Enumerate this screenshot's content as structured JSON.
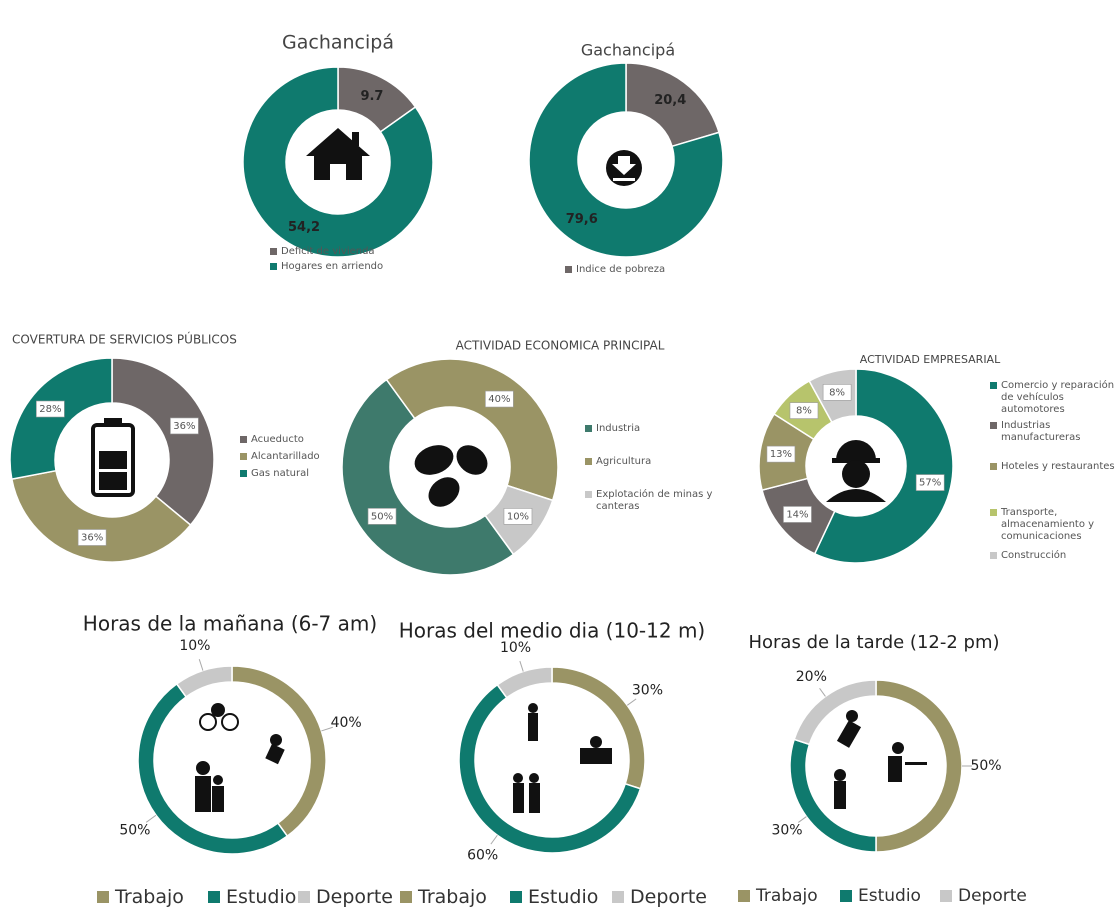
{
  "chart_data": [
    {
      "type": "pie",
      "title": "Gachancipá",
      "categories": [
        "Deficit de vivienda",
        "Hogares en arriendo"
      ],
      "values": [
        9.7,
        54.2
      ],
      "value_labels": [
        "9.7",
        "54,2"
      ],
      "colors": [
        "#6e6767",
        "#0f7a6e"
      ]
    },
    {
      "type": "pie",
      "title": "Gachancipá",
      "categories": [
        "Indice de pobreza",
        null
      ],
      "values": [
        20.4,
        79.6
      ],
      "value_labels": [
        "20,4",
        "79,6"
      ],
      "colors": [
        "#6e6767",
        "#0f7a6e"
      ]
    },
    {
      "type": "pie",
      "title": "COVERTURA DE SERVICIOS PÚBLICOS",
      "categories": [
        "Acueducto",
        "Alcantarillado",
        "Gas natural"
      ],
      "values": [
        36,
        36,
        28
      ],
      "value_labels": [
        "36%",
        "36%",
        "28%"
      ],
      "colors": [
        "#6e6767",
        "#9a9465",
        "#0f7a6e"
      ]
    },
    {
      "type": "pie",
      "title": "ACTIVIDAD ECONOMICA PRINCIPAL",
      "categories": [
        "Industria",
        "Agricultura",
        "Explotación de minas y canteras"
      ],
      "values": [
        50,
        40,
        10
      ],
      "value_labels": [
        "50%",
        "40%",
        "10%"
      ],
      "colors": [
        "#3e7a6c",
        "#9a9465",
        "#c8c8c8"
      ]
    },
    {
      "type": "pie",
      "title": "ACTIVIDAD EMPRESARIAL",
      "categories": [
        "Comercio y reparación de vehículos automotores",
        "Industrias manufactureras",
        "Hoteles y restaurantes",
        "Transporte, almacenamiento y comunicaciones",
        "Construcción"
      ],
      "values": [
        57,
        14,
        13,
        8,
        8
      ],
      "value_labels": [
        "57%",
        "14%",
        "13%",
        "8%",
        "8%"
      ],
      "colors": [
        "#0f7a6e",
        "#6e6767",
        "#9a9465",
        "#b7c46c",
        "#c8c8c8"
      ]
    },
    {
      "type": "pie",
      "title": "Horas de la mañana (6-7 am)",
      "categories": [
        "Trabajo",
        "Estudio",
        "Deporte"
      ],
      "values": [
        40,
        50,
        10
      ],
      "value_labels": [
        "40%",
        "50%",
        "10%"
      ],
      "colors": [
        "#9a9465",
        "#0f7a6e",
        "#c8c8c8"
      ]
    },
    {
      "type": "pie",
      "title": "Horas del medio dia (10-12 m)",
      "categories": [
        "Trabajo",
        "Estudio",
        "Deporte"
      ],
      "values": [
        30,
        60,
        10
      ],
      "value_labels": [
        "30%",
        "60%",
        "10%"
      ],
      "colors": [
        "#9a9465",
        "#0f7a6e",
        "#c8c8c8"
      ]
    },
    {
      "type": "pie",
      "title": "Horas de la tarde (12-2 pm)",
      "categories": [
        "Trabajo",
        "Estudio",
        "Deporte"
      ],
      "values": [
        50,
        30,
        20
      ],
      "value_labels": [
        "50%",
        "30%",
        "20%"
      ],
      "colors": [
        "#9a9465",
        "#0f7a6e",
        "#c8c8c8"
      ]
    }
  ]
}
